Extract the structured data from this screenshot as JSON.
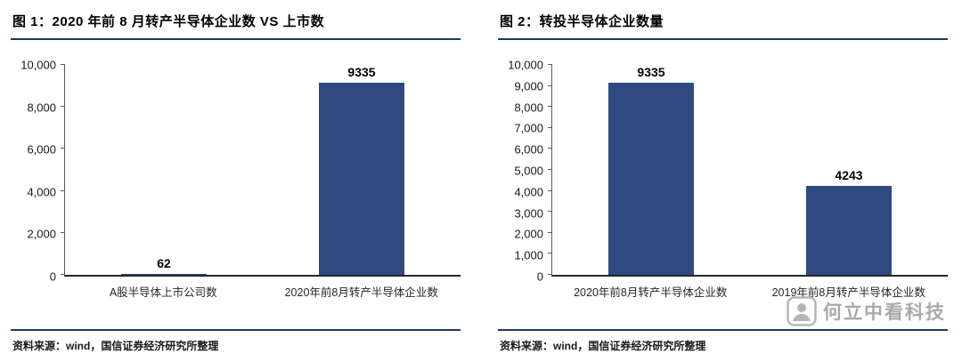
{
  "panels": [
    {
      "title": "图 1：2020 年前 8 月转产半导体企业数 VS 上市数",
      "source": "资料来源：wind，国信证券经济研究所整理"
    },
    {
      "title": "图 2：转投半导体企业数量",
      "source": "资料来源：wind，国信证券经济研究所整理"
    }
  ],
  "watermark": {
    "text": "何立中看科技"
  },
  "colors": {
    "bar": "#2e4a80",
    "rule": "#1f3864",
    "axis": "#595959",
    "watermark": "#a9a9a9"
  },
  "chart_data": [
    {
      "type": "bar",
      "title": "图 1：2020 年前 8 月转产半导体企业数 VS 上市数",
      "categories": [
        "A股半导体上市公司数",
        "2020年前8月转产半导体企业数"
      ],
      "values": [
        62,
        9335
      ],
      "value_labels": [
        "62",
        "9335"
      ],
      "xlabel": "",
      "ylabel": "",
      "ylim": [
        0,
        10000
      ],
      "ytick_step": 2000,
      "grid": false,
      "legend": false,
      "bar_color": "#2e4a80"
    },
    {
      "type": "bar",
      "title": "图 2：转投半导体企业数量",
      "categories": [
        "2020年前8月转产半导体企业数",
        "2019年前8月转产半导体企业数"
      ],
      "values": [
        9335,
        4243
      ],
      "value_labels": [
        "9335",
        "4243"
      ],
      "xlabel": "",
      "ylabel": "",
      "ylim": [
        0,
        10000
      ],
      "ytick_step": 1000,
      "grid": false,
      "legend": false,
      "bar_color": "#2e4a80"
    }
  ]
}
